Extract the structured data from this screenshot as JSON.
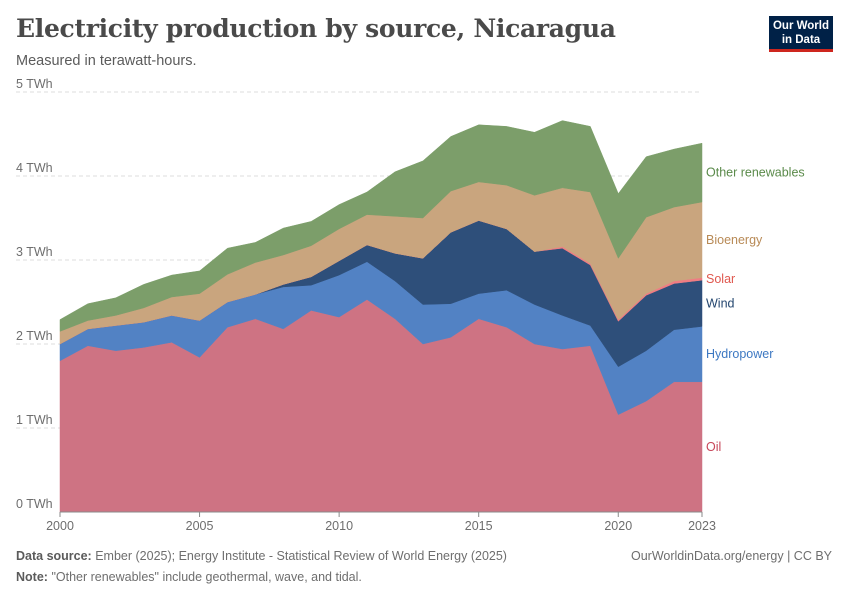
{
  "header": {
    "title": "Electricity production by source, Nicaragua",
    "subtitle": "Measured in terawatt-hours.",
    "logo_line1": "Our World",
    "logo_line2": "in Data"
  },
  "footer": {
    "source_label": "Data source:",
    "source_text": "Ember (2025); Energy Institute - Statistical Review of World Energy (2025)",
    "note_label": "Note:",
    "note_text": "\"Other renewables\" include geothermal, wave, and tidal.",
    "credit": "OurWorldinData.org/energy | CC BY"
  },
  "chart_data": {
    "type": "area",
    "stacked": true,
    "title": "Electricity production by source, Nicaragua",
    "subtitle": "Measured in terawatt-hours.",
    "unit": "TWh",
    "ylim": [
      0,
      5
    ],
    "yticks": [
      0,
      1,
      2,
      3,
      4,
      5
    ],
    "ytick_labels": [
      "0 TWh",
      "1 TWh",
      "2 TWh",
      "3 TWh",
      "4 TWh",
      "5 TWh"
    ],
    "xlim": [
      2000,
      2023
    ],
    "xticks": [
      2000,
      2005,
      2010,
      2015,
      2020,
      2023
    ],
    "x": [
      2000,
      2001,
      2002,
      2003,
      2004,
      2005,
      2006,
      2007,
      2008,
      2009,
      2010,
      2011,
      2012,
      2013,
      2014,
      2015,
      2016,
      2017,
      2018,
      2019,
      2020,
      2021,
      2022,
      2023
    ],
    "grid": "horizontal dashed",
    "legend": "right, end-of-series labels",
    "series": [
      {
        "name": "Oil",
        "color": "#ce7383",
        "values": [
          1.8,
          1.98,
          1.92,
          1.96,
          2.02,
          1.84,
          2.2,
          2.3,
          2.18,
          2.4,
          2.32,
          2.53,
          2.3,
          2.0,
          2.08,
          2.3,
          2.2,
          2.0,
          1.94,
          1.98,
          1.16,
          1.32,
          1.55,
          1.55
        ]
      },
      {
        "name": "Hydropower",
        "color": "#5282c4",
        "values": [
          0.2,
          0.2,
          0.3,
          0.3,
          0.32,
          0.44,
          0.3,
          0.29,
          0.5,
          0.3,
          0.5,
          0.45,
          0.45,
          0.47,
          0.4,
          0.3,
          0.44,
          0.47,
          0.4,
          0.24,
          0.57,
          0.6,
          0.62,
          0.66
        ]
      },
      {
        "name": "Wind",
        "color": "#2e4f7a",
        "values": [
          0,
          0,
          0,
          0,
          0,
          0,
          0,
          0,
          0.03,
          0.1,
          0.17,
          0.2,
          0.33,
          0.55,
          0.85,
          0.87,
          0.73,
          0.63,
          0.8,
          0.72,
          0.54,
          0.66,
          0.55,
          0.55
        ]
      },
      {
        "name": "Solar",
        "color": "#ef7d83",
        "values": [
          0,
          0,
          0,
          0,
          0,
          0,
          0,
          0,
          0,
          0,
          0,
          0,
          0,
          0,
          0,
          0,
          0,
          0,
          0.02,
          0.02,
          0.02,
          0.02,
          0.03,
          0.03
        ]
      },
      {
        "name": "Bioenergy",
        "color": "#c9a57e",
        "values": [
          0.15,
          0.1,
          0.12,
          0.17,
          0.22,
          0.32,
          0.33,
          0.38,
          0.35,
          0.37,
          0.38,
          0.36,
          0.44,
          0.48,
          0.49,
          0.46,
          0.52,
          0.67,
          0.7,
          0.85,
          0.73,
          0.91,
          0.88,
          0.9
        ]
      },
      {
        "name": "Other renewables",
        "color": "#7c9e6a",
        "values": [
          0.14,
          0.2,
          0.21,
          0.28,
          0.26,
          0.27,
          0.31,
          0.24,
          0.32,
          0.29,
          0.29,
          0.27,
          0.53,
          0.68,
          0.65,
          0.68,
          0.7,
          0.75,
          0.8,
          0.78,
          0.77,
          0.72,
          0.69,
          0.7
        ]
      }
    ],
    "legend_label_colors": {
      "Oil": "#c8475a",
      "Hydropower": "#3d78c2",
      "Wind": "#24466f",
      "Solar": "#e0584f",
      "Bioenergy": "#b88a56",
      "Other renewables": "#5a8a4a"
    }
  }
}
